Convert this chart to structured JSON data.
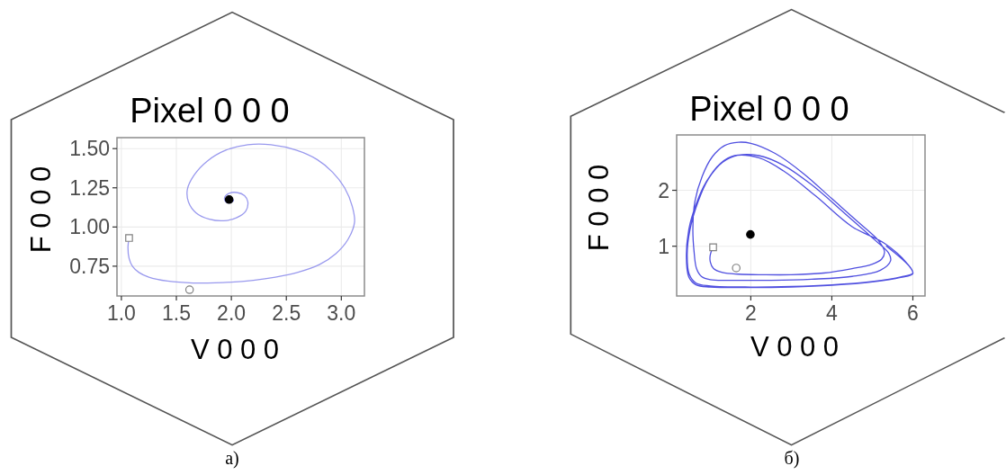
{
  "chart_data": [
    {
      "type": "line",
      "title": "Pixel 0 0 0",
      "xlabel": "V 0 0 0",
      "ylabel": "F 0 0 0",
      "annotations": [
        "a)"
      ],
      "xlim": [
        0.96,
        3.21
      ],
      "ylim": [
        0.56,
        1.57
      ],
      "xticks": [
        {
          "value": 1,
          "label": "1.0"
        },
        1.5,
        {
          "value": 2,
          "label": "2.0"
        },
        2.5,
        {
          "value": 3,
          "label": "3.0"
        }
      ],
      "yticks": [
        0.75,
        {
          "value": 1,
          "label": "1.00"
        },
        1.25,
        {
          "value": 1.5,
          "label": "1.50"
        }
      ],
      "grid": true,
      "series": [
        {
          "type": "line",
          "color": "#9999ee",
          "x": [
            1.07,
            1.06,
            1.07,
            1.1,
            1.16,
            1.25,
            1.42,
            1.65,
            2.0,
            2.2,
            2.4,
            2.6,
            2.8,
            2.95,
            3.06,
            3.12,
            3.1,
            3.03,
            2.92,
            2.78,
            2.59,
            2.36,
            2.15,
            1.95,
            1.78,
            1.66,
            1.6,
            1.61,
            1.68,
            1.8,
            1.93,
            2.05,
            2.13,
            2.15,
            2.12,
            2.05,
            1.98,
            1.94,
            1.95,
            1.99,
            2.02,
            1.99,
            1.98
          ],
          "values": [
            0.93,
            0.87,
            0.8,
            0.75,
            0.71,
            0.68,
            0.655,
            0.643,
            0.648,
            0.66,
            0.68,
            0.71,
            0.76,
            0.83,
            0.92,
            1.03,
            1.13,
            1.25,
            1.35,
            1.43,
            1.49,
            1.525,
            1.525,
            1.49,
            1.42,
            1.33,
            1.24,
            1.16,
            1.09,
            1.05,
            1.04,
            1.06,
            1.1,
            1.16,
            1.2,
            1.22,
            1.215,
            1.19,
            1.16,
            1.155,
            1.17,
            1.18,
            1.175
          ]
        },
        {
          "type": "scatter",
          "marker": "square",
          "color": "#808080",
          "x": [
            1.07
          ],
          "values": [
            0.93
          ]
        },
        {
          "type": "scatter",
          "marker": "circle",
          "color": "#808080",
          "x": [
            1.62
          ],
          "values": [
            0.6
          ]
        },
        {
          "type": "scatter",
          "marker": "circle",
          "color": "#000000",
          "x": [
            1.98
          ],
          "values": [
            1.175
          ]
        }
      ]
    },
    {
      "type": "line",
      "title": "Pixel 0 0 0",
      "xlabel": "V 0 0 0",
      "ylabel": "F 0 0 0",
      "annotations": [
        "б)"
      ],
      "xlim": [
        0.17,
        6.3
      ],
      "ylim": [
        0.11,
        2.99
      ],
      "xticks": [
        2,
        4,
        6
      ],
      "yticks": [
        1,
        2
      ],
      "grid": true,
      "series": [
        {
          "type": "line",
          "color": "#5050e0",
          "x": [
            1.07,
            1.0,
            1.0,
            1.08,
            1.3,
            1.7,
            2.3,
            3.0,
            3.8,
            4.5,
            5.0,
            5.23,
            5.3,
            5.15,
            4.7,
            4.0,
            3.3,
            2.6,
            2.0,
            1.7,
            1.35,
            1.05,
            0.8,
            0.62,
            0.57,
            0.6,
            0.66,
            0.78,
            1.0,
            1.6,
            2.5,
            3.5,
            4.5,
            5.2,
            5.45,
            5.4,
            5.0,
            4.3,
            3.5,
            2.8,
            2.2,
            1.7,
            1.3,
            0.95,
            0.7,
            0.5,
            0.43,
            0.48,
            0.65,
            1.0,
            2.0,
            3.0,
            4.0,
            5.0,
            5.7,
            6.0,
            5.85,
            5.3,
            4.5,
            3.6,
            2.8,
            2.2,
            1.6,
            1.25,
            0.9,
            0.65,
            0.47,
            0.41,
            0.47,
            0.65,
            1.0,
            2.0,
            3.0,
            4.0,
            5.0,
            5.7,
            6.0,
            5.9,
            5.35
          ],
          "values": [
            0.98,
            0.85,
            0.72,
            0.6,
            0.53,
            0.5,
            0.49,
            0.49,
            0.52,
            0.6,
            0.68,
            0.77,
            0.9,
            1.1,
            1.4,
            1.85,
            2.3,
            2.66,
            2.84,
            2.86,
            2.8,
            2.6,
            2.25,
            1.8,
            1.3,
            0.9,
            0.6,
            0.46,
            0.4,
            0.39,
            0.39,
            0.41,
            0.46,
            0.57,
            0.74,
            0.88,
            1.15,
            1.6,
            2.1,
            2.45,
            2.62,
            2.63,
            2.5,
            2.2,
            1.8,
            1.3,
            0.85,
            0.5,
            0.34,
            0.29,
            0.27,
            0.28,
            0.31,
            0.37,
            0.45,
            0.52,
            0.7,
            1.05,
            1.35,
            1.9,
            2.35,
            2.58,
            2.62,
            2.48,
            2.15,
            1.75,
            1.3,
            0.8,
            0.45,
            0.31,
            0.27,
            0.26,
            0.27,
            0.3,
            0.36,
            0.44,
            0.51,
            0.65,
            1.0
          ]
        },
        {
          "type": "scatter",
          "marker": "square",
          "color": "#808080",
          "x": [
            1.07
          ],
          "values": [
            0.98
          ]
        },
        {
          "type": "scatter",
          "marker": "circle",
          "color": "#808080",
          "x": [
            1.64
          ],
          "values": [
            0.61
          ]
        },
        {
          "type": "scatter",
          "marker": "circle",
          "color": "#000000",
          "x": [
            1.99
          ],
          "values": [
            1.21
          ]
        }
      ]
    }
  ]
}
